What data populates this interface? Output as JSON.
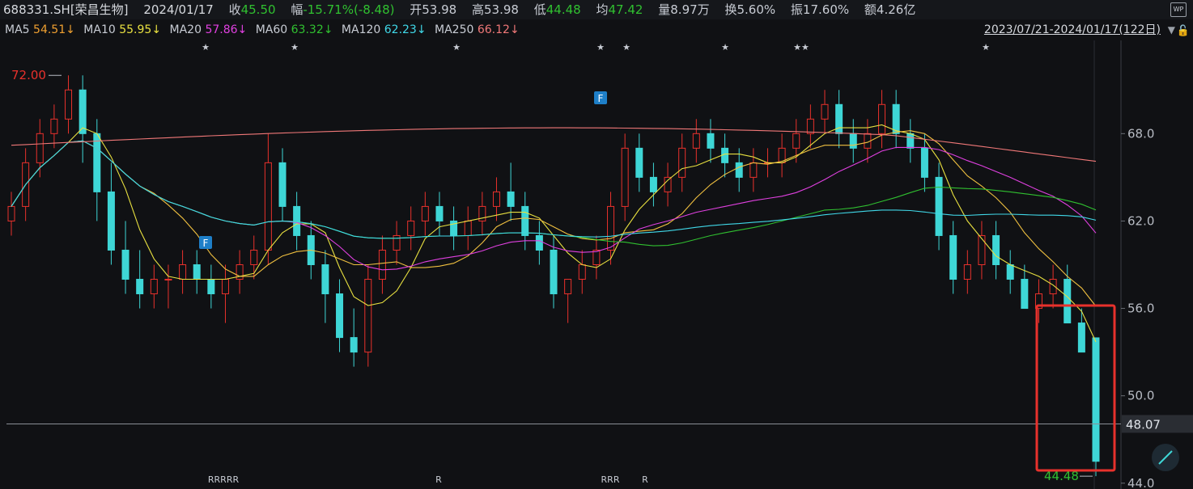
{
  "header": {
    "code": "688331.SH[荣昌生物]",
    "date": "2024/01/17",
    "close_label": "收",
    "close": "45.50",
    "change_label": "幅",
    "change": "-15.71%(-8.48)",
    "open_label": "开",
    "open": "53.98",
    "high_label": "高",
    "high": "53.98",
    "low_label": "低",
    "low": "44.48",
    "avg_label": "均",
    "avg": "47.42",
    "vol_label": "量",
    "vol": "8.97万",
    "turnover_label": "换",
    "turnover": "5.60%",
    "amp_label": "振",
    "amp": "17.60%",
    "amount_label": "额",
    "amount": "4.26亿",
    "wp_icon": "WP"
  },
  "ma_bar": {
    "items": [
      {
        "label": "MA5",
        "value": "54.51↓",
        "color": "#f0a030"
      },
      {
        "label": "MA10",
        "value": "55.95↓",
        "color": "#e8e040"
      },
      {
        "label": "MA20",
        "value": "57.86↓",
        "color": "#e040e0"
      },
      {
        "label": "MA60",
        "value": "63.32↓",
        "color": "#30c030"
      },
      {
        "label": "MA120",
        "value": "62.23↓",
        "color": "#40d8e8"
      },
      {
        "label": "MA250",
        "value": "66.12↓",
        "color": "#f07878"
      }
    ],
    "range": "2023/07/21-2024/01/17(122日)",
    "dropdown_icon": "▼",
    "lock_icon": "🔓"
  },
  "chart_data": {
    "type": "candlestick",
    "ylim": [
      43.6,
      74.4
    ],
    "yticks": [
      "68.0",
      "62.0",
      "56.0",
      "50.0",
      "44.0"
    ],
    "crosshair_value": "48.07",
    "max_label": "72.00",
    "min_label": "44.48",
    "markers_top": [
      "★",
      "★",
      "★",
      "★",
      "★",
      "★",
      "★★",
      "★"
    ],
    "markers_bottom": [
      "RRRRR",
      "R",
      "RRR",
      "R"
    ],
    "f_badges": [
      "F",
      "F"
    ],
    "candles": [
      [
        62,
        64,
        61,
        63
      ],
      [
        63,
        67,
        62,
        66
      ],
      [
        66,
        69,
        65,
        68
      ],
      [
        68,
        70,
        67,
        69
      ],
      [
        69,
        72,
        68,
        71
      ],
      [
        71,
        72,
        66,
        68
      ],
      [
        68,
        69,
        62,
        64
      ],
      [
        64,
        66,
        59,
        60
      ],
      [
        60,
        62,
        57,
        58
      ],
      [
        58,
        60,
        56,
        57
      ],
      [
        57,
        59,
        56,
        58
      ],
      [
        58,
        59,
        56,
        58
      ],
      [
        58,
        60,
        57,
        59
      ],
      [
        59,
        60,
        57,
        58
      ],
      [
        58,
        59,
        56,
        57
      ],
      [
        57,
        59,
        55,
        58
      ],
      [
        58,
        60,
        57,
        59
      ],
      [
        59,
        61,
        58,
        60
      ],
      [
        60,
        68,
        59,
        66
      ],
      [
        66,
        67,
        62,
        63
      ],
      [
        63,
        64,
        60,
        61
      ],
      [
        61,
        62,
        58,
        59
      ],
      [
        59,
        60,
        55,
        57
      ],
      [
        57,
        58,
        53,
        54
      ],
      [
        54,
        56,
        52,
        53
      ],
      [
        53,
        59,
        52,
        58
      ],
      [
        58,
        61,
        57,
        60
      ],
      [
        60,
        62,
        59,
        61
      ],
      [
        61,
        63,
        60,
        62
      ],
      [
        62,
        64,
        61,
        63
      ],
      [
        63,
        64,
        61,
        62
      ],
      [
        62,
        63,
        60,
        61
      ],
      [
        61,
        63,
        60,
        62
      ],
      [
        62,
        64,
        61,
        63
      ],
      [
        63,
        65,
        62,
        64
      ],
      [
        64,
        66,
        62,
        63
      ],
      [
        63,
        64,
        60,
        61
      ],
      [
        61,
        62,
        59,
        60
      ],
      [
        60,
        61,
        56,
        57
      ],
      [
        57,
        58,
        55,
        58
      ],
      [
        58,
        60,
        57,
        59
      ],
      [
        59,
        61,
        58,
        60
      ],
      [
        60,
        64,
        59,
        63
      ],
      [
        63,
        68,
        62,
        67
      ],
      [
        67,
        68,
        64,
        65
      ],
      [
        65,
        66,
        63,
        64
      ],
      [
        64,
        66,
        63,
        65
      ],
      [
        65,
        68,
        64,
        67
      ],
      [
        67,
        69,
        66,
        68
      ],
      [
        68,
        69,
        66,
        67
      ],
      [
        67,
        68,
        65,
        66
      ],
      [
        66,
        67,
        64,
        65
      ],
      [
        65,
        67,
        64,
        66
      ],
      [
        66,
        67,
        65,
        66
      ],
      [
        66,
        68,
        65,
        67
      ],
      [
        67,
        69,
        66,
        68
      ],
      [
        68,
        70,
        67,
        69
      ],
      [
        69,
        71,
        68,
        70
      ],
      [
        70,
        71,
        67,
        68
      ],
      [
        68,
        69,
        66,
        67
      ],
      [
        67,
        69,
        66,
        68
      ],
      [
        68,
        71,
        67,
        70
      ],
      [
        70,
        71,
        67,
        68
      ],
      [
        68,
        69,
        66,
        67
      ],
      [
        67,
        68,
        64,
        65
      ],
      [
        65,
        66,
        60,
        61
      ],
      [
        61,
        62,
        57,
        58
      ],
      [
        58,
        60,
        57,
        59
      ],
      [
        59,
        62,
        58,
        61
      ],
      [
        61,
        62,
        58,
        59
      ],
      [
        59,
        60,
        57,
        58
      ],
      [
        58,
        59,
        56,
        56
      ],
      [
        56,
        58,
        55,
        57
      ],
      [
        57,
        59,
        56,
        58
      ],
      [
        58,
        59,
        55,
        55
      ],
      [
        55,
        56,
        53,
        53
      ],
      [
        53.98,
        53.98,
        44.48,
        45.5
      ]
    ]
  }
}
